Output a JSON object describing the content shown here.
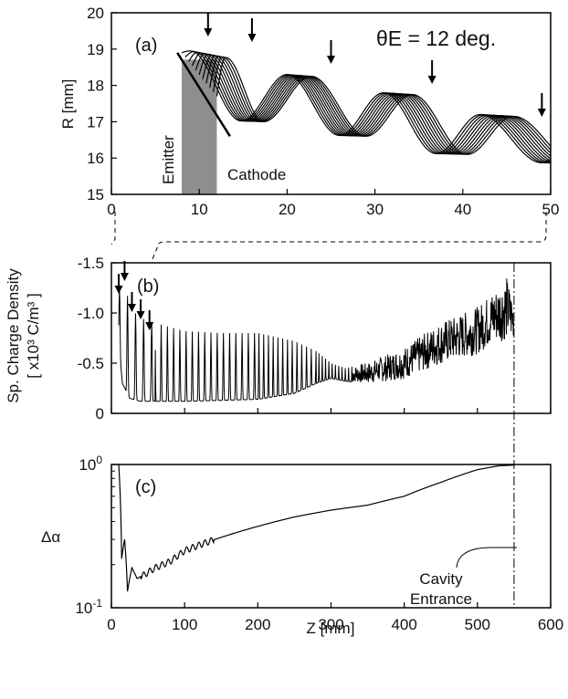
{
  "chart_data": [
    {
      "panel": "(a)",
      "type": "line",
      "ylabel": "R [mm]",
      "xlim": [
        0,
        50
      ],
      "ylim": [
        15,
        20
      ],
      "xticks": [
        "0",
        "10",
        "20",
        "30",
        "40",
        "50"
      ],
      "yticks": [
        "15",
        "16",
        "17",
        "18",
        "19",
        "20"
      ],
      "annotation_angle": "θE = 12 deg.",
      "annotation_emitter": "Emitter",
      "annotation_cathode": "Cathode",
      "emitter_region": [
        8,
        12
      ],
      "emitter_line": {
        "x": [
          7.5,
          13.5
        ],
        "y": [
          18.9,
          16.6
        ]
      },
      "arrows_at_z": [
        11,
        16,
        25,
        36.5,
        49
      ],
      "series_count": 11,
      "trajectory_shape": {
        "start_z_range": [
          8,
          12
        ],
        "start_r_range": [
          18.9,
          17.7
        ],
        "peaks": [
          [
            9,
            18.95
          ],
          [
            20,
            18.3
          ],
          [
            31,
            17.8
          ],
          [
            42,
            17.2
          ]
        ],
        "valleys": [
          [
            14.8,
            17.0
          ],
          [
            26,
            16.6
          ],
          [
            37,
            16.1
          ],
          [
            49,
            15.85
          ]
        ],
        "end": [
          50,
          15.95
        ]
      }
    },
    {
      "panel": "(b)",
      "type": "line",
      "ylabel_line1": "Sp. Charge Density",
      "ylabel_line2": "[ x10³ C/m³ ]",
      "xlim": [
        0,
        600
      ],
      "ylim": [
        0,
        -1.5
      ],
      "yticks": [
        "0",
        "-0.5",
        "-1.0",
        "-1.5"
      ],
      "envelope": {
        "z": [
          10,
          15,
          25,
          40,
          60,
          100,
          150,
          200,
          250,
          280,
          300,
          320,
          350,
          400,
          450,
          500,
          520,
          540,
          550
        ],
        "peak": [
          -1.2,
          -1.45,
          -1.05,
          -0.95,
          -0.9,
          -0.82,
          -0.8,
          -0.8,
          -0.72,
          -0.62,
          -0.5,
          -0.45,
          -0.5,
          -0.65,
          -0.9,
          -1.05,
          -1.2,
          -1.35,
          -1.1
        ],
        "base": [
          -0.7,
          -0.3,
          -0.15,
          -0.12,
          -0.12,
          -0.12,
          -0.13,
          -0.14,
          -0.2,
          -0.3,
          -0.35,
          -0.32,
          -0.3,
          -0.35,
          -0.5,
          -0.6,
          -0.7,
          -0.75,
          -0.75
        ]
      },
      "arrows_at_z": [
        10,
        18,
        28,
        40,
        52
      ]
    },
    {
      "panel": "(c)",
      "type": "line",
      "xlabel": "Z [mm]",
      "ylabel": "Δα",
      "yscale": "log",
      "xlim": [
        0,
        600
      ],
      "ylim": [
        0.1,
        1.0
      ],
      "xticks": [
        "0",
        "100",
        "200",
        "300",
        "400",
        "500",
        "600"
      ],
      "ytick_labels": [
        {
          "value": 1.0,
          "mantissa": "10",
          "exponent": "0"
        },
        {
          "value": 0.1,
          "mantissa": "10",
          "exponent": "-1"
        }
      ],
      "annotation_line1": "Cavity",
      "annotation_line2": "Entrance",
      "cavity_entrance_z": 550,
      "curve": {
        "z": [
          10,
          14,
          18,
          22,
          28,
          35,
          45,
          60,
          80,
          100,
          150,
          200,
          250,
          300,
          350,
          400,
          450,
          500,
          530,
          550
        ],
        "values": [
          1.0,
          0.22,
          0.3,
          0.13,
          0.19,
          0.16,
          0.17,
          0.19,
          0.21,
          0.25,
          0.31,
          0.37,
          0.43,
          0.48,
          0.52,
          0.6,
          0.75,
          0.92,
          0.98,
          0.99
        ]
      }
    }
  ]
}
